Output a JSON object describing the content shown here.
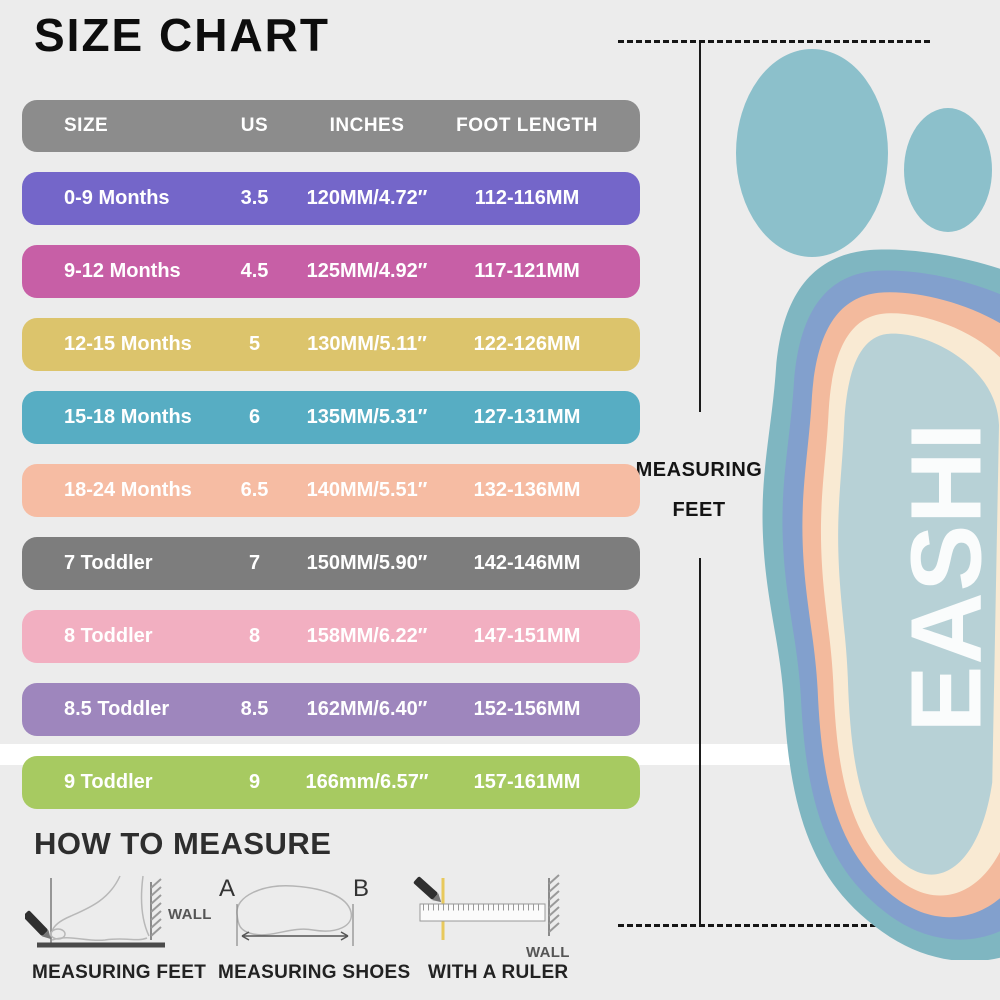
{
  "page": {
    "background_color": "#ECECEC"
  },
  "title": "SIZE CHART",
  "chart_data": {
    "type": "table",
    "title": "SIZE CHART",
    "columns": [
      "SIZE",
      "US",
      "INCHES",
      "FOOT LENGTH"
    ],
    "rows": [
      [
        "0-9 Months",
        "3.5",
        "120MM/4.72″",
        "112-116MM"
      ],
      [
        "9-12 Months",
        "4.5",
        "125MM/4.92″",
        "117-121MM"
      ],
      [
        "12-15 Months",
        "5",
        "130MM/5.11″",
        "122-126MM"
      ],
      [
        "15-18 Months",
        "6",
        "135MM/5.31″",
        "127-131MM"
      ],
      [
        "18-24 Months",
        "6.5",
        "140MM/5.51″",
        "132-136MM"
      ],
      [
        "7 Toddler",
        "7",
        "150MM/5.90″",
        "142-146MM"
      ],
      [
        "8 Toddler",
        "8",
        "158MM/6.22″",
        "147-151MM"
      ],
      [
        "8.5 Toddler",
        "8.5",
        "162MM/6.40″",
        "152-156MM"
      ],
      [
        "9 Toddler",
        "9",
        "166mm/6.57″",
        "157-161MM"
      ]
    ],
    "row_colors": [
      "#7466C9",
      "#C75FA6",
      "#DCC46C",
      "#57ADC3",
      "#F6BCA3",
      "#7D7D7D",
      "#F2AFC1",
      "#9E86BD",
      "#A7CA61"
    ],
    "header_color": "#8C8C8C"
  },
  "measuring_feet_callout": {
    "line1": "MEASURING",
    "line2": "FEET"
  },
  "how_to_measure": {
    "heading": "HOW TO MEASURE",
    "diagrams": [
      {
        "label": "MEASURING FEET",
        "wall_label": "WALL"
      },
      {
        "label": "MEASURING SHOES",
        "point_a": "A",
        "point_b": "B"
      },
      {
        "label": "WITH A RULER",
        "wall_label": "WALL"
      }
    ]
  },
  "brand_text": "EASHI",
  "illustration_colors": {
    "toe": "#8CC0CB",
    "outer_band": "#7FB6C1",
    "blue_band": "#82A0CD",
    "peach_band": "#F3BA9D",
    "cream_band": "#F9EAD3",
    "inner": "#B7D1D6",
    "brand_text_color": "#FAFCFC"
  }
}
